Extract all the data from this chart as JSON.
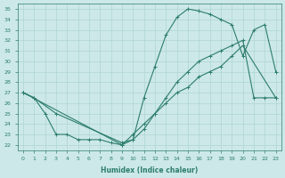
{
  "xlabel": "Humidex (Indice chaleur)",
  "bg_color": "#cce8e8",
  "line_color": "#2d7d6e",
  "grid_color": "#b0d4d4",
  "xlim": [
    -0.5,
    23.5
  ],
  "ylim": [
    21.5,
    35.5
  ],
  "xticks": [
    0,
    1,
    2,
    3,
    4,
    5,
    6,
    7,
    8,
    9,
    10,
    11,
    12,
    13,
    14,
    15,
    16,
    17,
    18,
    19,
    20,
    21,
    22,
    23
  ],
  "yticks": [
    22,
    23,
    24,
    25,
    26,
    27,
    28,
    29,
    30,
    31,
    32,
    33,
    34,
    35
  ],
  "line1_x": [
    0,
    1,
    3,
    9,
    10,
    11,
    12,
    13,
    14,
    15,
    16,
    17,
    18,
    19,
    20,
    21,
    22,
    23
  ],
  "line1_y": [
    27,
    26.5,
    25,
    22.2,
    22.5,
    26.5,
    29.5,
    32.5,
    34.2,
    35.0,
    34.8,
    34.5,
    34.0,
    33.5,
    30.5,
    33.0,
    33.5,
    29.0
  ],
  "line2_x": [
    0,
    1,
    2,
    3,
    4,
    5,
    6,
    7,
    8,
    9,
    10,
    11,
    12,
    13,
    14,
    15,
    16,
    17,
    18,
    19,
    20,
    21,
    22,
    23
  ],
  "line2_y": [
    27,
    26.5,
    25.0,
    23.0,
    23.0,
    22.5,
    22.5,
    22.5,
    22.2,
    22.0,
    22.5,
    23.5,
    25.0,
    26.5,
    28.0,
    29.0,
    30.0,
    30.5,
    31.0,
    31.5,
    32.0,
    26.5,
    26.5,
    26.5
  ],
  "line3_x": [
    0,
    9,
    10,
    11,
    12,
    13,
    14,
    15,
    16,
    17,
    18,
    19,
    20,
    23
  ],
  "line3_y": [
    27,
    22.0,
    23.0,
    24.0,
    25.0,
    26.0,
    27.0,
    27.5,
    28.5,
    29.0,
    29.5,
    30.5,
    31.5,
    26.5
  ]
}
